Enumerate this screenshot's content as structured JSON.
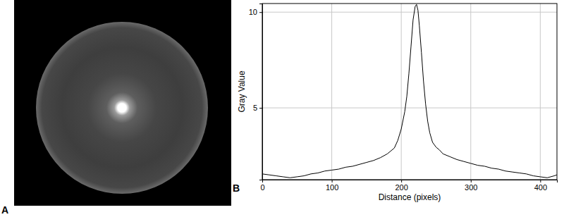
{
  "chart_data": {
    "type": "line",
    "x_label": "Distance (pixels)",
    "y_label": "Gray Value",
    "annotations": [
      "A",
      "B"
    ],
    "x": [
      0,
      10,
      20,
      30,
      40,
      50,
      60,
      70,
      80,
      90,
      100,
      110,
      120,
      130,
      140,
      150,
      160,
      170,
      180,
      190,
      195,
      200,
      205,
      208,
      211,
      214,
      217,
      220,
      222,
      224,
      226,
      229,
      232,
      235,
      238,
      241,
      245,
      250,
      255,
      260,
      270,
      280,
      290,
      300,
      310,
      320,
      330,
      340,
      350,
      360,
      370,
      380,
      390,
      400,
      410,
      420,
      424
    ],
    "values": [
      1.55,
      1.5,
      1.45,
      1.4,
      1.35,
      1.4,
      1.45,
      1.55,
      1.6,
      1.7,
      1.75,
      1.8,
      1.9,
      1.95,
      2.05,
      2.15,
      2.25,
      2.4,
      2.6,
      2.9,
      3.3,
      3.9,
      4.8,
      5.6,
      6.8,
      8.2,
      9.6,
      10.3,
      10.4,
      10.1,
      9.3,
      7.9,
      6.4,
      5.2,
      4.3,
      3.7,
      3.2,
      2.95,
      2.8,
      2.6,
      2.45,
      2.3,
      2.2,
      2.1,
      2.0,
      1.95,
      1.85,
      1.8,
      1.7,
      1.65,
      1.6,
      1.55,
      1.45,
      1.4,
      1.35,
      1.45,
      1.5
    ],
    "color": "#000000",
    "xlim": [
      0,
      424
    ],
    "xticks": [
      0,
      100,
      200,
      300,
      400
    ],
    "ylim": [
      1.25,
      10.45
    ],
    "yticks": [
      5,
      10
    ],
    "grid": true
  }
}
